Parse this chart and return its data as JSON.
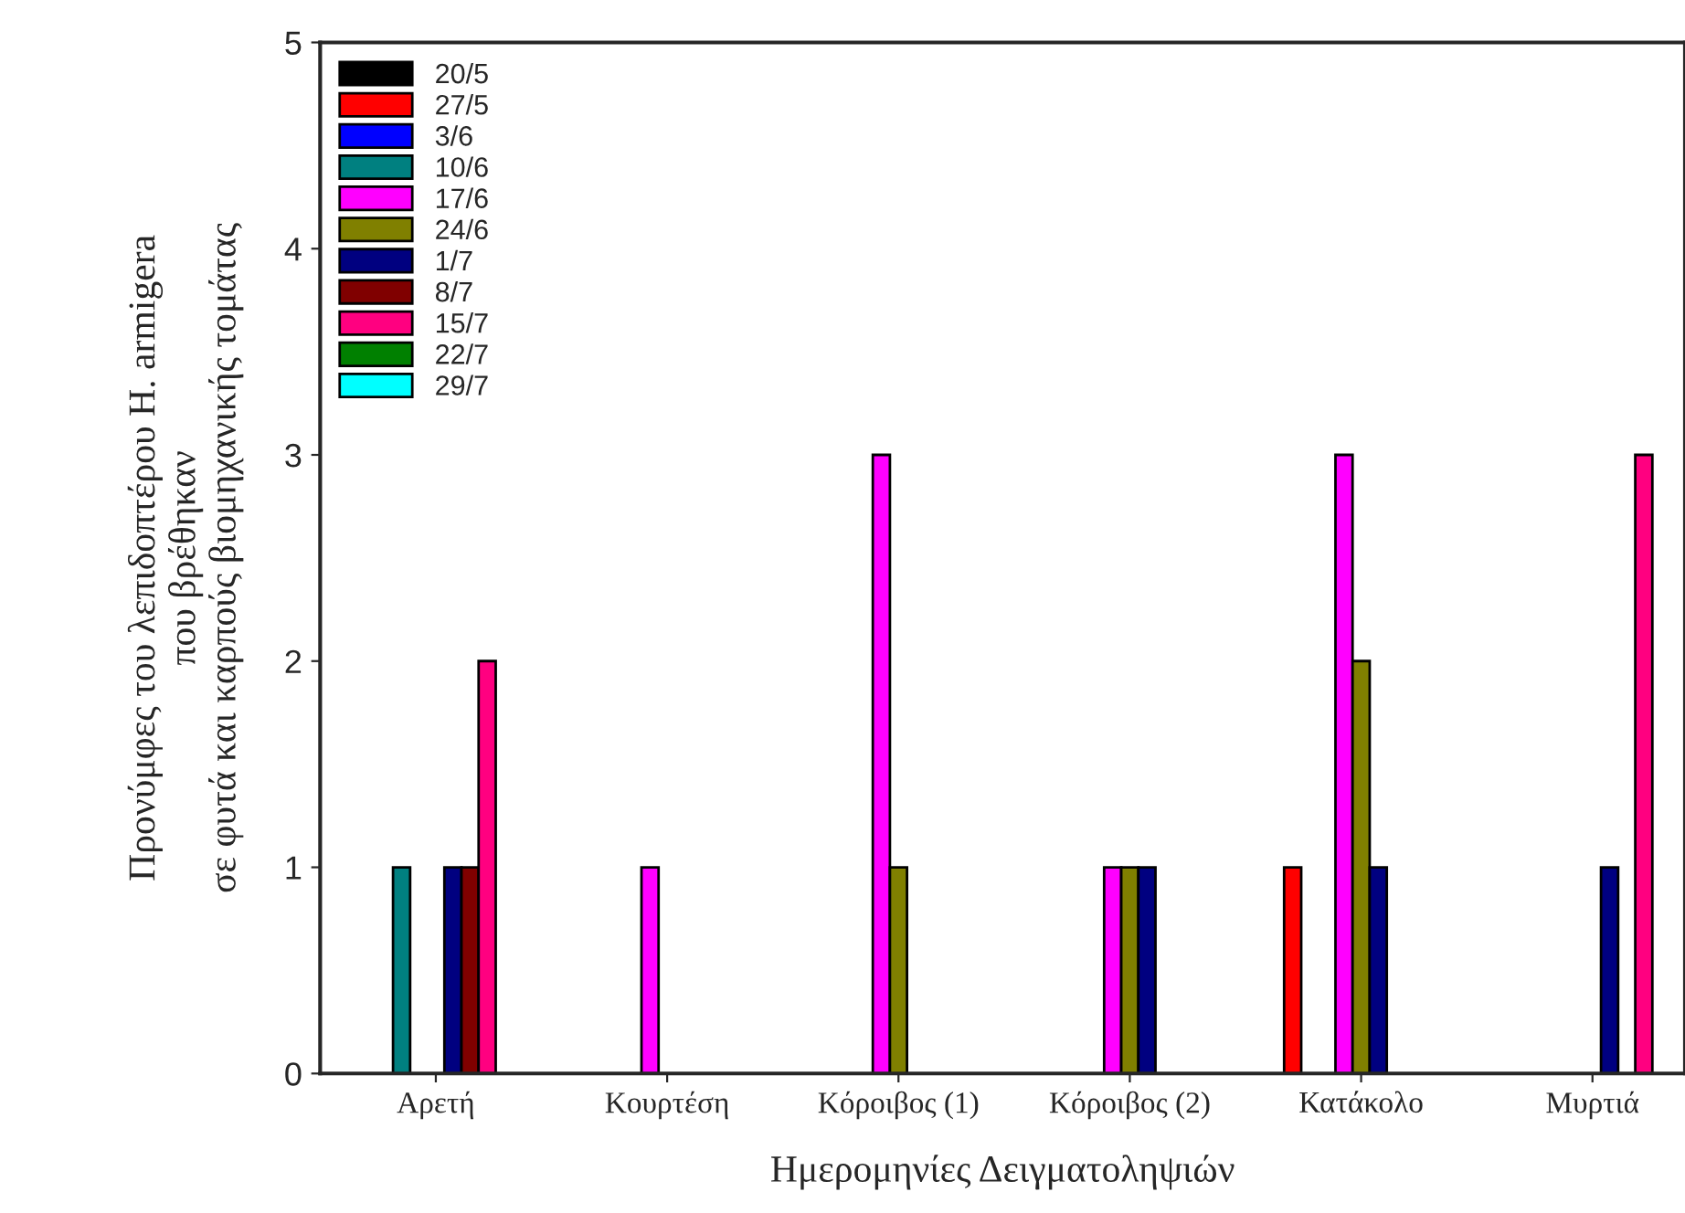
{
  "chart_data": {
    "type": "bar",
    "xlabel": "Ημερομηνίες Δειγματοληψιών",
    "ylabel": "Προνύμφες του λεπιδοπτέρου H. armigera\nπου βρέθηκαν\nσε φυτά και καρπούς βιομηχανικής τομάτας",
    "categories": [
      "Αρετή",
      "Κουρτέση",
      "Κόροιβος (1)",
      "Κόροιβος (2)",
      "Κατάκολο",
      "Μυρτιά"
    ],
    "ylim": [
      0,
      5
    ],
    "yticks": [
      0,
      1,
      2,
      3,
      4,
      5
    ],
    "grid": false,
    "legend": "top left",
    "series": [
      {
        "name": "20/5",
        "color": "#000000",
        "values": [
          0,
          0,
          0,
          0,
          0,
          0
        ]
      },
      {
        "name": "27/5",
        "color": "#ff0000",
        "values": [
          0,
          0,
          0,
          0,
          1,
          0
        ]
      },
      {
        "name": "3/6",
        "color": "#0000ff",
        "values": [
          0,
          0,
          0,
          0,
          0,
          0
        ]
      },
      {
        "name": "10/6",
        "color": "#008080",
        "values": [
          1,
          0,
          0,
          0,
          0,
          0
        ]
      },
      {
        "name": "17/6",
        "color": "#ff00ff",
        "values": [
          0,
          1,
          3,
          1,
          3,
          0
        ]
      },
      {
        "name": "24/6",
        "color": "#808000",
        "values": [
          0,
          0,
          1,
          1,
          2,
          0
        ]
      },
      {
        "name": "1/7",
        "color": "#000080",
        "values": [
          1,
          0,
          0,
          1,
          1,
          1
        ]
      },
      {
        "name": "8/7",
        "color": "#800000",
        "values": [
          1,
          0,
          0,
          0,
          0,
          0
        ]
      },
      {
        "name": "15/7",
        "color": "#ff0080",
        "values": [
          2,
          0,
          0,
          0,
          0,
          3
        ]
      },
      {
        "name": "22/7",
        "color": "#008000",
        "values": [
          0,
          0,
          0,
          0,
          0,
          0
        ]
      },
      {
        "name": "29/7",
        "color": "#00ffff",
        "values": [
          0,
          0,
          0,
          0,
          0,
          0
        ]
      }
    ]
  }
}
